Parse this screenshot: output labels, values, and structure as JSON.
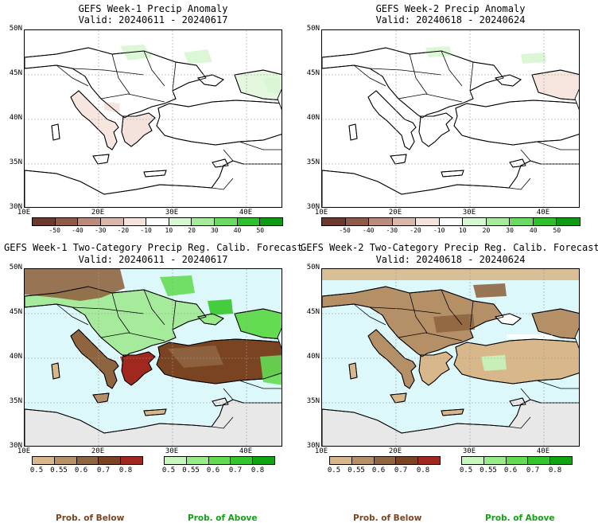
{
  "panels": [
    {
      "title": "GEFS Week-1 Precip Anomaly",
      "valid": "Valid: 20240611 - 20240617"
    },
    {
      "title": "GEFS Week-2 Precip Anomaly",
      "valid": "Valid: 20240618 - 20240624"
    },
    {
      "title": "GEFS Week-1 Two-Category Precip Reg. Calib. Forecast",
      "valid": "Valid: 20240611 - 20240617"
    },
    {
      "title": "GEFS Week-2 Two-Category Precip Reg. Calib. Forecast",
      "valid": "Valid: 20240618 - 20240624"
    }
  ],
  "lat_labels": [
    "50N",
    "45N",
    "40N",
    "35N",
    "30N"
  ],
  "lon_labels": [
    "10E",
    "20E",
    "30E",
    "40E"
  ],
  "anomaly_scale": {
    "labels": [
      "-50",
      "-40",
      "-30",
      "-20",
      "-10",
      "10",
      "20",
      "30",
      "40",
      "50"
    ],
    "colors": [
      "#6b3a2e",
      "#8f5a4a",
      "#b98c7e",
      "#d9b8ac",
      "#f3e3dc",
      "#ffffff",
      "#d7f6d2",
      "#a6eb9c",
      "#6cd960",
      "#2fbf2a",
      "#0f9a14"
    ]
  },
  "below_scale": {
    "labels": [
      "0.5",
      "0.55",
      "0.6",
      "0.7",
      "0.8"
    ],
    "colors": [
      "#d8b88a",
      "#b58f66",
      "#8f6540",
      "#7a4422",
      "#a0281e"
    ],
    "caption": "Prob. of Below",
    "caption_color": "#7a4422"
  },
  "above_scale": {
    "labels": [
      "0.5",
      "0.55",
      "0.6",
      "0.7",
      "0.8"
    ],
    "colors": [
      "#c8f5bd",
      "#98ec88",
      "#64dc52",
      "#34c62a",
      "#12a512"
    ],
    "caption": "Prob. of Above",
    "caption_color": "#15a015"
  },
  "map_colors": {
    "sea": "#dcf8fb",
    "land_no_signal": "#e8e8e8",
    "coast": "#000000",
    "grid": "#999999"
  }
}
